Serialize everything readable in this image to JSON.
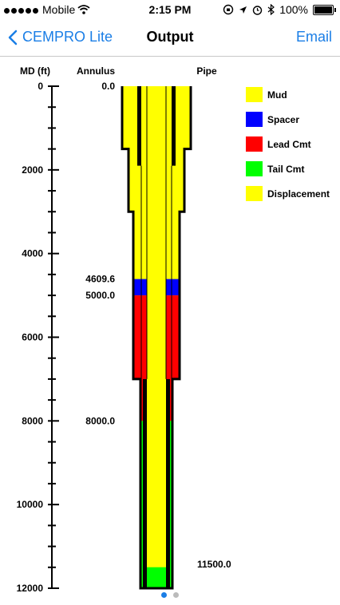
{
  "status_bar": {
    "carrier": "Mobile",
    "time": "2:15 PM",
    "battery": "100%"
  },
  "nav": {
    "back_label": "CEMPRO Lite",
    "title": "Output",
    "email_label": "Email"
  },
  "chart_data": {
    "type": "wellbore-schematic",
    "ylabel": "MD (ft)",
    "annulus_label": "Annulus",
    "pipe_label": "Pipe",
    "ylim": [
      0,
      12000
    ],
    "yticks": [
      0,
      2000,
      4000,
      6000,
      8000,
      10000,
      12000
    ],
    "annulus_depth_labels": [
      "0.0",
      "4609.6",
      "5000.0",
      "8000.0"
    ],
    "pipe_depth_labels": [
      "11500.0"
    ],
    "legend": [
      {
        "label": "Mud",
        "color": "#ffff00"
      },
      {
        "label": "Spacer",
        "color": "#0000ff"
      },
      {
        "label": "Lead Cmt",
        "color": "#ff0000"
      },
      {
        "label": "Tail Cmt",
        "color": "#00ff00"
      },
      {
        "label": "Displacement",
        "color": "#ffff00"
      }
    ],
    "annulus_fluids": [
      {
        "fluid": "Mud",
        "top": 0,
        "bottom": 4609.6,
        "color": "#ffff00"
      },
      {
        "fluid": "Spacer",
        "top": 4609.6,
        "bottom": 5000,
        "color": "#0000ff"
      },
      {
        "fluid": "Lead Cmt",
        "top": 5000,
        "bottom": 8000,
        "color": "#ff0000"
      },
      {
        "fluid": "Tail Cmt",
        "top": 8000,
        "bottom": 12000,
        "color": "#00ff00"
      }
    ],
    "pipe_fluids": [
      {
        "fluid": "Displacement",
        "top": 0,
        "bottom": 11500,
        "color": "#ffff00"
      },
      {
        "fluid": "Tail Cmt",
        "top": 11500,
        "bottom": 12000,
        "color": "#00ff00"
      }
    ],
    "hole_sections": [
      {
        "top": 0,
        "bottom": 1500,
        "level": 0
      },
      {
        "top": 1500,
        "bottom": 3000,
        "level": 1
      },
      {
        "top": 3000,
        "bottom": 7000,
        "level": 2
      },
      {
        "top": 7000,
        "bottom": 12000,
        "level": 3
      }
    ],
    "casing_shoe_depths": [
      1900,
      7000
    ]
  },
  "pager": {
    "pages": 2,
    "current": 1,
    "active_color": "#1a7ee6",
    "inactive_color": "#bbbbbb"
  }
}
